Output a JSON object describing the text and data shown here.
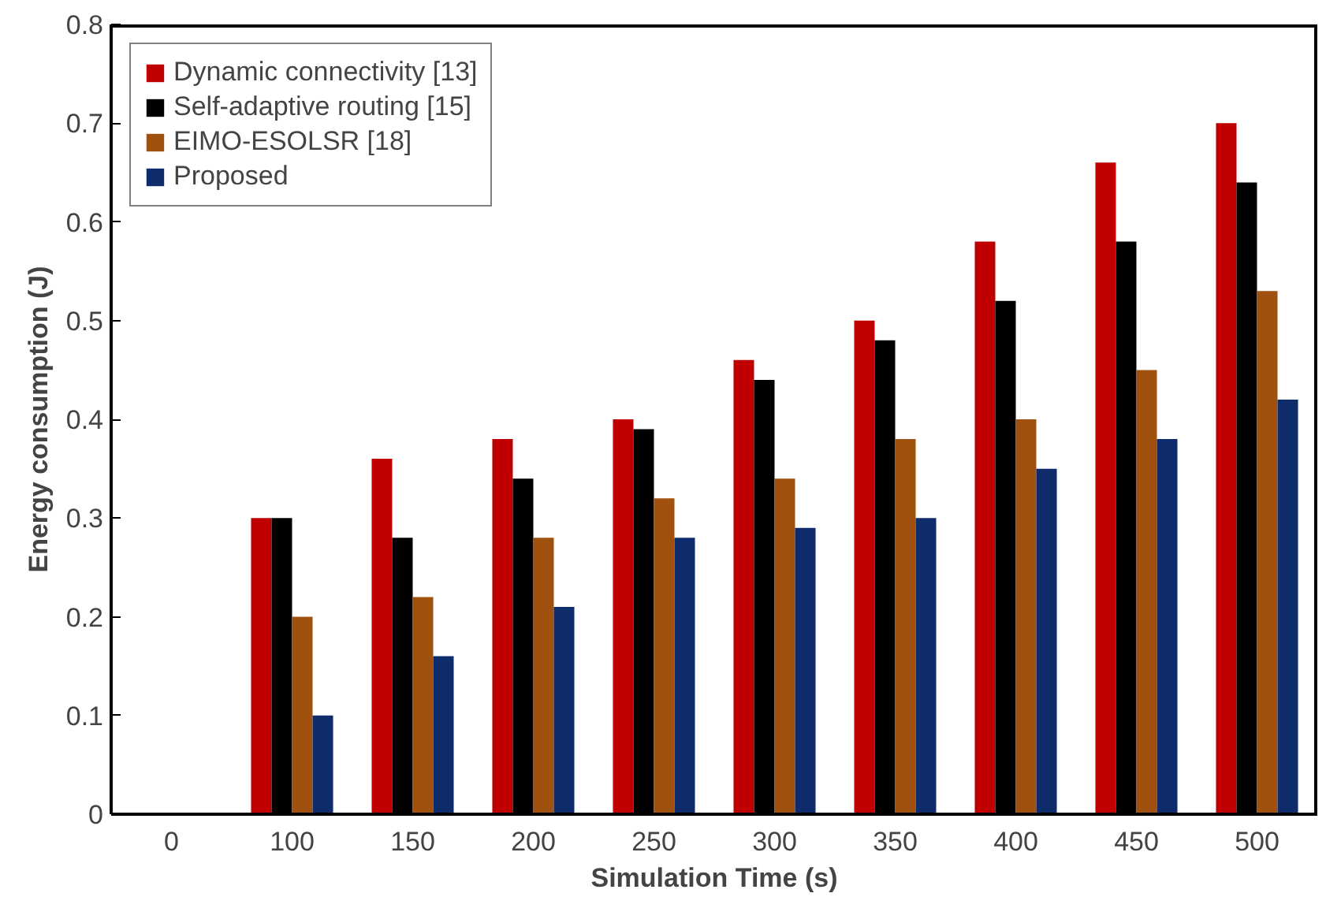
{
  "chart_data": {
    "type": "bar",
    "xlabel": "Simulation Time (s)",
    "ylabel": "Energy consumption (J)",
    "categories": [
      "0",
      "100",
      "150",
      "200",
      "250",
      "300",
      "350",
      "400",
      "450",
      "500"
    ],
    "series": [
      {
        "name": "Dynamic connectivity [13]",
        "color": "#c00000",
        "values": [
          null,
          0.3,
          0.36,
          0.38,
          0.4,
          0.46,
          0.5,
          0.58,
          0.66,
          0.7
        ]
      },
      {
        "name": "Self-adaptive routing [15]",
        "color": "#000000",
        "values": [
          null,
          0.3,
          0.28,
          0.34,
          0.39,
          0.44,
          0.48,
          0.52,
          0.58,
          0.64
        ]
      },
      {
        "name": "EIMO-ESOLSR [18]",
        "color": "#a0500f",
        "values": [
          null,
          0.2,
          0.22,
          0.28,
          0.32,
          0.34,
          0.38,
          0.4,
          0.45,
          0.53
        ]
      },
      {
        "name": "Proposed",
        "color": "#0e2b6b",
        "values": [
          null,
          0.1,
          0.16,
          0.21,
          0.28,
          0.29,
          0.3,
          0.35,
          0.38,
          0.42
        ]
      }
    ],
    "ylim": [
      0,
      0.8
    ],
    "yticks": [
      0,
      0.1,
      0.2,
      0.3,
      0.4,
      0.5,
      0.6,
      0.7,
      0.8
    ],
    "legend": "top left",
    "grid": false
  }
}
